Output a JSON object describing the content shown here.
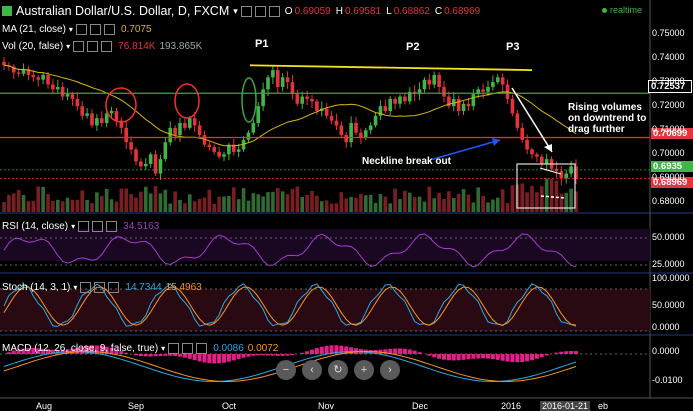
{
  "header": {
    "symbol": "Australian Dollar/U.S. Dollar, D, FXCM",
    "o_label": "O",
    "o": "0.69059",
    "h_label": "H",
    "h": "0.69581",
    "l_label": "L",
    "l": "0.68862",
    "c_label": "C",
    "c": "0.68969",
    "realtime": "realtime"
  },
  "indicators": {
    "ma": {
      "label": "MA (21, close)",
      "value": "0.7075"
    },
    "vol": {
      "label": "Vol (20, false)",
      "v1": "76.814K",
      "v2": "193.865K"
    },
    "rsi": {
      "label": "RSI (14, close)",
      "value": "34.5163"
    },
    "stoch": {
      "label": "Stoch (14, 3, 1)",
      "k": "14.7344",
      "d": "15.4963"
    },
    "macd": {
      "label": "MACD (12, 26, close, 9, false, true)",
      "v1": "0.0086",
      "v2": "0.0072"
    }
  },
  "annotations": {
    "p1": "P1",
    "p2": "P2",
    "p3": "P3",
    "neckline": "Neckline break out",
    "rising1": "Rising volumes",
    "rising2": "on downtrend to",
    "rising3": "drag further"
  },
  "price_tags": {
    "t1": "0.72537",
    "t2": "0.70699",
    "t3": "0.6935",
    "t4": "0.68969"
  },
  "colors": {
    "up": "#41b548",
    "down": "#e5323b",
    "neckline": "#ff2b2b",
    "resistance": "#f7e11e",
    "ma": "#d4b816",
    "rsi": "#a33bd0",
    "stochK": "#2ba9e0",
    "stochD": "#f79421",
    "macd": "#e41f8c"
  },
  "toolbar": {
    "zoom_out": "−",
    "zoom_back": "‹",
    "reset": "↻",
    "zoom_in": "+",
    "zoom_fwd": "›"
  },
  "chart_data": {
    "type": "candlestick",
    "x_tick_labels": [
      "Aug",
      "Sep",
      "Oct",
      "Nov",
      "Dec",
      "2016",
      "2016-01-21",
      "eb"
    ],
    "price_axis": {
      "labels": [
        "0.75000",
        "0.74000",
        "0.73000",
        "0.72000",
        "0.71000",
        "0.70000",
        "0.69000",
        "0.68000"
      ],
      "ylim": [
        0.676,
        0.755
      ]
    },
    "rsi_axis": {
      "labels": [
        "50.0000",
        "25.0000"
      ]
    },
    "stoch_axis": {
      "labels": [
        "100.0000",
        "50.0000",
        "0.0000"
      ]
    },
    "macd_axis": {
      "labels": [
        "0.0000",
        "-0.0100"
      ]
    },
    "close_series": [
      0.737,
      0.7365,
      0.734,
      0.7335,
      0.7355,
      0.733,
      0.732,
      0.731,
      0.733,
      0.729,
      0.727,
      0.728,
      0.724,
      0.725,
      0.723,
      0.72,
      0.716,
      0.717,
      0.712,
      0.715,
      0.713,
      0.717,
      0.718,
      0.714,
      0.711,
      0.705,
      0.702,
      0.697,
      0.695,
      0.696,
      0.7,
      0.692,
      0.698,
      0.705,
      0.711,
      0.708,
      0.713,
      0.711,
      0.715,
      0.712,
      0.708,
      0.704,
      0.703,
      0.701,
      0.699,
      0.7,
      0.704,
      0.701,
      0.702,
      0.706,
      0.709,
      0.713,
      0.72,
      0.727,
      0.732,
      0.735,
      0.728,
      0.732,
      0.73,
      0.725,
      0.721,
      0.724,
      0.723,
      0.722,
      0.718,
      0.719,
      0.716,
      0.714,
      0.712,
      0.708,
      0.705,
      0.713,
      0.709,
      0.707,
      0.71,
      0.712,
      0.716,
      0.72,
      0.718,
      0.723,
      0.721,
      0.724,
      0.722,
      0.726,
      0.725,
      0.727,
      0.731,
      0.729,
      0.733,
      0.728,
      0.724,
      0.72,
      0.723,
      0.718,
      0.721,
      0.72,
      0.725,
      0.727,
      0.726,
      0.728,
      0.73,
      0.732,
      0.729,
      0.723,
      0.717,
      0.711,
      0.706,
      0.702,
      0.7,
      0.699,
      0.696,
      0.698,
      0.694,
      0.693,
      0.69,
      0.692,
      0.695,
      0.6897
    ],
    "resistance_line": {
      "from": 0.737,
      "to": 0.735
    },
    "neckline_level": 0.70699,
    "support_level": 0.72537
  }
}
